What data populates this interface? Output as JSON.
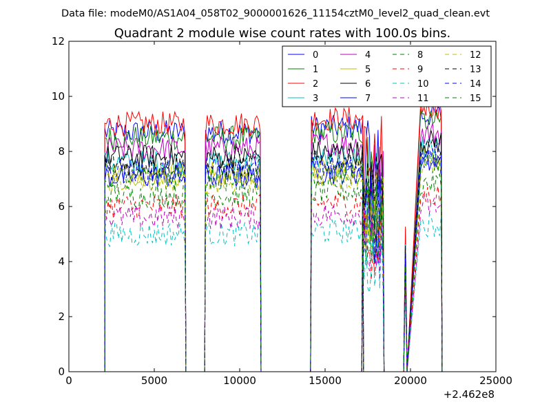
{
  "figure": {
    "suptitle": "Data file: modeM0/AS1A04_058T02_9000001626_11154cztM0_level2_quad_clean.evt"
  },
  "chart_data": {
    "type": "line",
    "title": "Quadrant 2 module wise count rates with 100.0s bins.",
    "xlabel": "",
    "ylabel": "",
    "x_offset_label": "+2.462e8",
    "xlim": [
      0,
      25000
    ],
    "ylim": [
      0,
      12
    ],
    "x_ticks": [
      "0",
      "5000",
      "10000",
      "15000",
      "20000",
      "25000"
    ],
    "y_ticks": [
      "0",
      "2",
      "4",
      "6",
      "8",
      "10",
      "12"
    ],
    "grid": false,
    "legend_position": "top-right",
    "legend_columns": 4,
    "series": [
      {
        "name": "0",
        "color": "#0000ff",
        "dash": "solid",
        "level": 8.7
      },
      {
        "name": "1",
        "color": "#008000",
        "dash": "solid",
        "level": 8.5
      },
      {
        "name": "2",
        "color": "#ff0000",
        "dash": "solid",
        "level": 9.0
      },
      {
        "name": "3",
        "color": "#00bfbf",
        "dash": "solid",
        "level": 7.6
      },
      {
        "name": "4",
        "color": "#bf00bf",
        "dash": "solid",
        "level": 8.1
      },
      {
        "name": "5",
        "color": "#bfbf00",
        "dash": "solid",
        "level": 7.2
      },
      {
        "name": "6",
        "color": "#000000",
        "dash": "solid",
        "level": 7.8
      },
      {
        "name": "7",
        "color": "#0000ff",
        "dash": "solid",
        "level": 7.1
      },
      {
        "name": "8",
        "color": "#008000",
        "dash": "dashed",
        "level": 6.4
      },
      {
        "name": "9",
        "color": "#ff0000",
        "dash": "dashed",
        "level": 6.0
      },
      {
        "name": "10",
        "color": "#00bfbf",
        "dash": "dashed",
        "level": 5.0
      },
      {
        "name": "11",
        "color": "#bf00bf",
        "dash": "dashed",
        "level": 5.6
      },
      {
        "name": "12",
        "color": "#bfbf00",
        "dash": "dashed",
        "level": 6.9
      },
      {
        "name": "13",
        "color": "#000000",
        "dash": "dashed",
        "level": 7.5
      },
      {
        "name": "14",
        "color": "#0000ff",
        "dash": "dashed",
        "level": 7.3
      },
      {
        "name": "15",
        "color": "#008000",
        "dash": "dashed",
        "level": 7.0
      }
    ],
    "segments": [
      {
        "x_start": 2100,
        "x_end": 6800,
        "factor": 1.0
      },
      {
        "x_start": 8000,
        "x_end": 11200,
        "factor": 1.0
      },
      {
        "x_start": 14200,
        "x_end": 17200,
        "factor": 1.02
      },
      {
        "x_start": 17200,
        "x_end": 18400,
        "factor": 0.8
      },
      {
        "x_start": 20600,
        "x_end": 21800,
        "factor": 1.07
      }
    ],
    "spikes": [
      {
        "x": 19700,
        "factor": 0.58
      }
    ]
  }
}
